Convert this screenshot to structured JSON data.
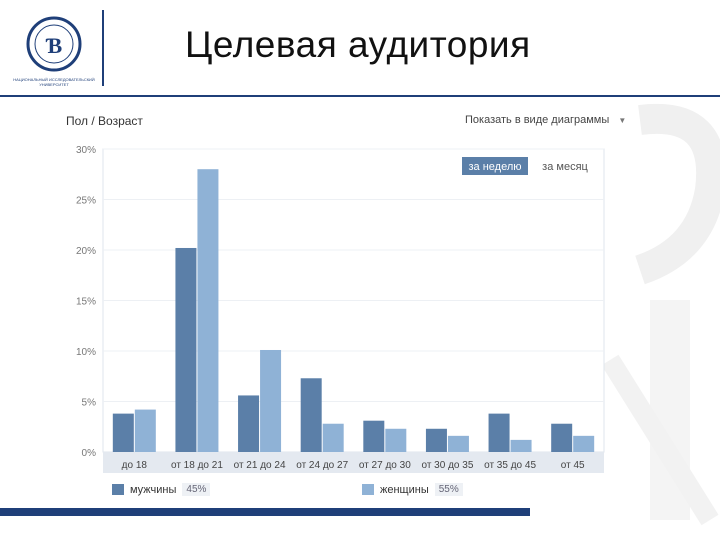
{
  "slide": {
    "title": "Целевая аудитория"
  },
  "logo": {
    "icon": "hse-logo-icon",
    "caption_line1": "НАЦИОНАЛЬНЫЙ ИССЛЕДОВАТЕЛЬСКИЙ",
    "caption_line2": "УНИВЕРСИТЕТ"
  },
  "chart_header": {
    "title": "Пол / Возраст",
    "view_label": "Показать в виде диаграммы",
    "tabs": [
      "за неделю",
      "за месяц"
    ],
    "active_tab": 0
  },
  "colors": {
    "men": "#5b7fa8",
    "women": "#8fb2d6",
    "accent": "#1f3f79",
    "plot_bg": "#ffffff",
    "active_tab_bg": "#5b7fa8"
  },
  "legend": {
    "men_label": "мужчины",
    "men_pct": "45%",
    "women_label": "женщины",
    "women_pct": "55%"
  },
  "chart_data": {
    "type": "bar",
    "categories": [
      "до 18",
      "от 18 до 21",
      "от 21 до 24",
      "от 24 до 27",
      "от 27 до 30",
      "от 30 до 35",
      "от 35 до 45",
      "от 45"
    ],
    "series": [
      {
        "name": "мужчины",
        "values": [
          3.8,
          20.2,
          5.6,
          7.3,
          3.1,
          2.3,
          3.8,
          2.8
        ]
      },
      {
        "name": "женщины",
        "values": [
          4.2,
          28.0,
          10.1,
          2.8,
          2.3,
          1.6,
          1.2,
          1.6
        ]
      }
    ],
    "yticks": [
      "0%",
      "5%",
      "10%",
      "15%",
      "20%",
      "25%",
      "30%"
    ],
    "ylim": [
      0,
      30
    ],
    "grid": true,
    "legend_position": "bottom"
  }
}
